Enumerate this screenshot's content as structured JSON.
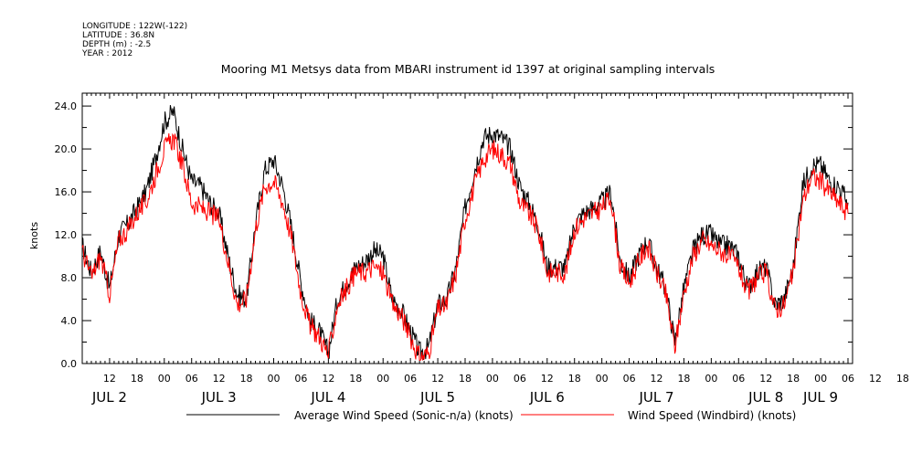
{
  "metadata": [
    "LONGITUDE : 122W(-122)",
    "LATITUDE : 36.8N",
    "DEPTH (m) : -2.5",
    "YEAR : 2012"
  ],
  "chart_data": {
    "type": "line",
    "title": "Mooring M1 Metsys data from MBARI instrument id 1397 at original sampling intervals",
    "ylabel": "knots",
    "xlabel": "",
    "ylim": [
      0,
      25.2
    ],
    "xlim_hours": [
      6,
      175
    ],
    "y_ticks": [
      "0.0",
      "4.0",
      "8.0",
      "12.0",
      "16.0",
      "20.0",
      "24.0"
    ],
    "x_hour_ticks": [
      "12",
      "18",
      "00",
      "06",
      "12",
      "18",
      "00",
      "06",
      "12",
      "18",
      "00",
      "06",
      "12",
      "18",
      "00",
      "06",
      "12",
      "18",
      "00",
      "06",
      "12",
      "18",
      "00",
      "06",
      "12",
      "18",
      "00",
      "06",
      "12",
      "18",
      "00",
      "06"
    ],
    "x_date_labels": [
      "JUL 2",
      "JUL 3",
      "JUL 4",
      "JUL 5",
      "JUL 6",
      "JUL 7",
      "JUL 8",
      "JUL 9"
    ],
    "grid": false,
    "legend": "bottom",
    "series": [
      {
        "name": "Average Wind Speed (Sonic-n/a) (knots)",
        "color": "#000000",
        "x_hours": [
          6,
          8,
          10,
          12,
          14,
          16,
          18,
          20,
          22,
          24,
          26,
          28,
          30,
          32,
          34,
          36,
          38,
          40,
          42,
          44,
          46,
          48,
          50,
          52,
          54,
          56,
          58,
          60,
          62,
          64,
          66,
          68,
          70,
          72,
          74,
          76,
          78,
          80,
          82,
          84,
          86,
          88,
          90,
          92,
          94,
          96,
          98,
          100,
          102,
          104,
          106,
          108,
          110,
          112,
          114,
          116,
          118,
          120,
          122,
          124,
          126,
          128,
          130,
          132,
          134,
          136,
          138,
          140,
          142,
          144,
          146,
          148,
          150,
          152,
          154,
          156,
          158,
          160,
          162,
          164,
          166,
          168,
          170,
          172,
          174
        ],
        "values": [
          11.0,
          8.5,
          10.5,
          7.0,
          12.0,
          13.0,
          14.5,
          16.0,
          19.0,
          22.5,
          23.5,
          20.0,
          17.0,
          16.5,
          15.0,
          14.0,
          10.0,
          6.5,
          6.0,
          13.0,
          18.0,
          19.0,
          16.5,
          12.5,
          7.5,
          4.0,
          3.0,
          1.0,
          6.0,
          7.5,
          9.0,
          9.5,
          10.5,
          10.0,
          6.0,
          5.0,
          3.0,
          1.0,
          1.5,
          5.5,
          6.0,
          9.0,
          14.5,
          18.0,
          21.0,
          21.5,
          21.0,
          20.0,
          16.5,
          15.0,
          13.0,
          9.0,
          9.0,
          9.0,
          13.0,
          14.0,
          14.5,
          15.0,
          16.0,
          9.5,
          8.0,
          10.0,
          11.5,
          9.0,
          7.0,
          2.0,
          7.0,
          10.5,
          12.0,
          12.0,
          11.0,
          11.0,
          10.0,
          7.0,
          8.5,
          9.0,
          5.5,
          6.0,
          9.0,
          16.5,
          18.5,
          18.5,
          17.0,
          16.5,
          15.0
        ]
      },
      {
        "name": "Wind Speed (Windbird) (knots)",
        "color": "#ff0000",
        "x_hours": [
          6,
          8,
          10,
          12,
          14,
          16,
          18,
          20,
          22,
          24,
          26,
          28,
          30,
          32,
          34,
          36,
          38,
          40,
          42,
          44,
          46,
          48,
          50,
          52,
          54,
          56,
          58,
          60,
          62,
          64,
          66,
          68,
          70,
          72,
          74,
          76,
          78,
          80,
          82,
          84,
          86,
          88,
          90,
          92,
          94,
          96,
          98,
          100,
          102,
          104,
          106,
          108,
          110,
          112,
          114,
          116,
          118,
          120,
          122,
          124,
          126,
          128,
          130,
          132,
          134,
          136,
          138,
          140,
          142,
          144,
          146,
          148,
          150,
          152,
          154,
          156,
          158,
          160,
          162,
          164,
          166,
          168,
          170,
          172,
          174
        ],
        "values": [
          10.5,
          8.0,
          10.0,
          6.5,
          11.5,
          12.5,
          14.0,
          15.0,
          17.5,
          20.0,
          21.0,
          18.5,
          15.0,
          14.5,
          14.0,
          13.5,
          9.5,
          5.5,
          6.0,
          12.5,
          16.5,
          17.0,
          15.0,
          11.5,
          6.5,
          3.5,
          2.5,
          0.8,
          5.5,
          7.0,
          8.5,
          8.5,
          9.0,
          8.5,
          5.5,
          4.5,
          2.5,
          0.5,
          1.0,
          5.0,
          5.5,
          8.5,
          13.5,
          16.5,
          19.0,
          20.0,
          19.5,
          18.5,
          15.0,
          14.0,
          12.5,
          8.5,
          8.5,
          8.5,
          12.5,
          13.5,
          14.0,
          14.5,
          15.5,
          9.0,
          7.5,
          9.5,
          11.0,
          8.5,
          6.5,
          1.5,
          6.5,
          10.0,
          11.5,
          11.0,
          10.5,
          10.0,
          9.0,
          6.5,
          8.0,
          8.5,
          5.0,
          5.5,
          8.5,
          15.0,
          17.5,
          17.0,
          16.0,
          15.0,
          14.0
        ]
      }
    ]
  }
}
